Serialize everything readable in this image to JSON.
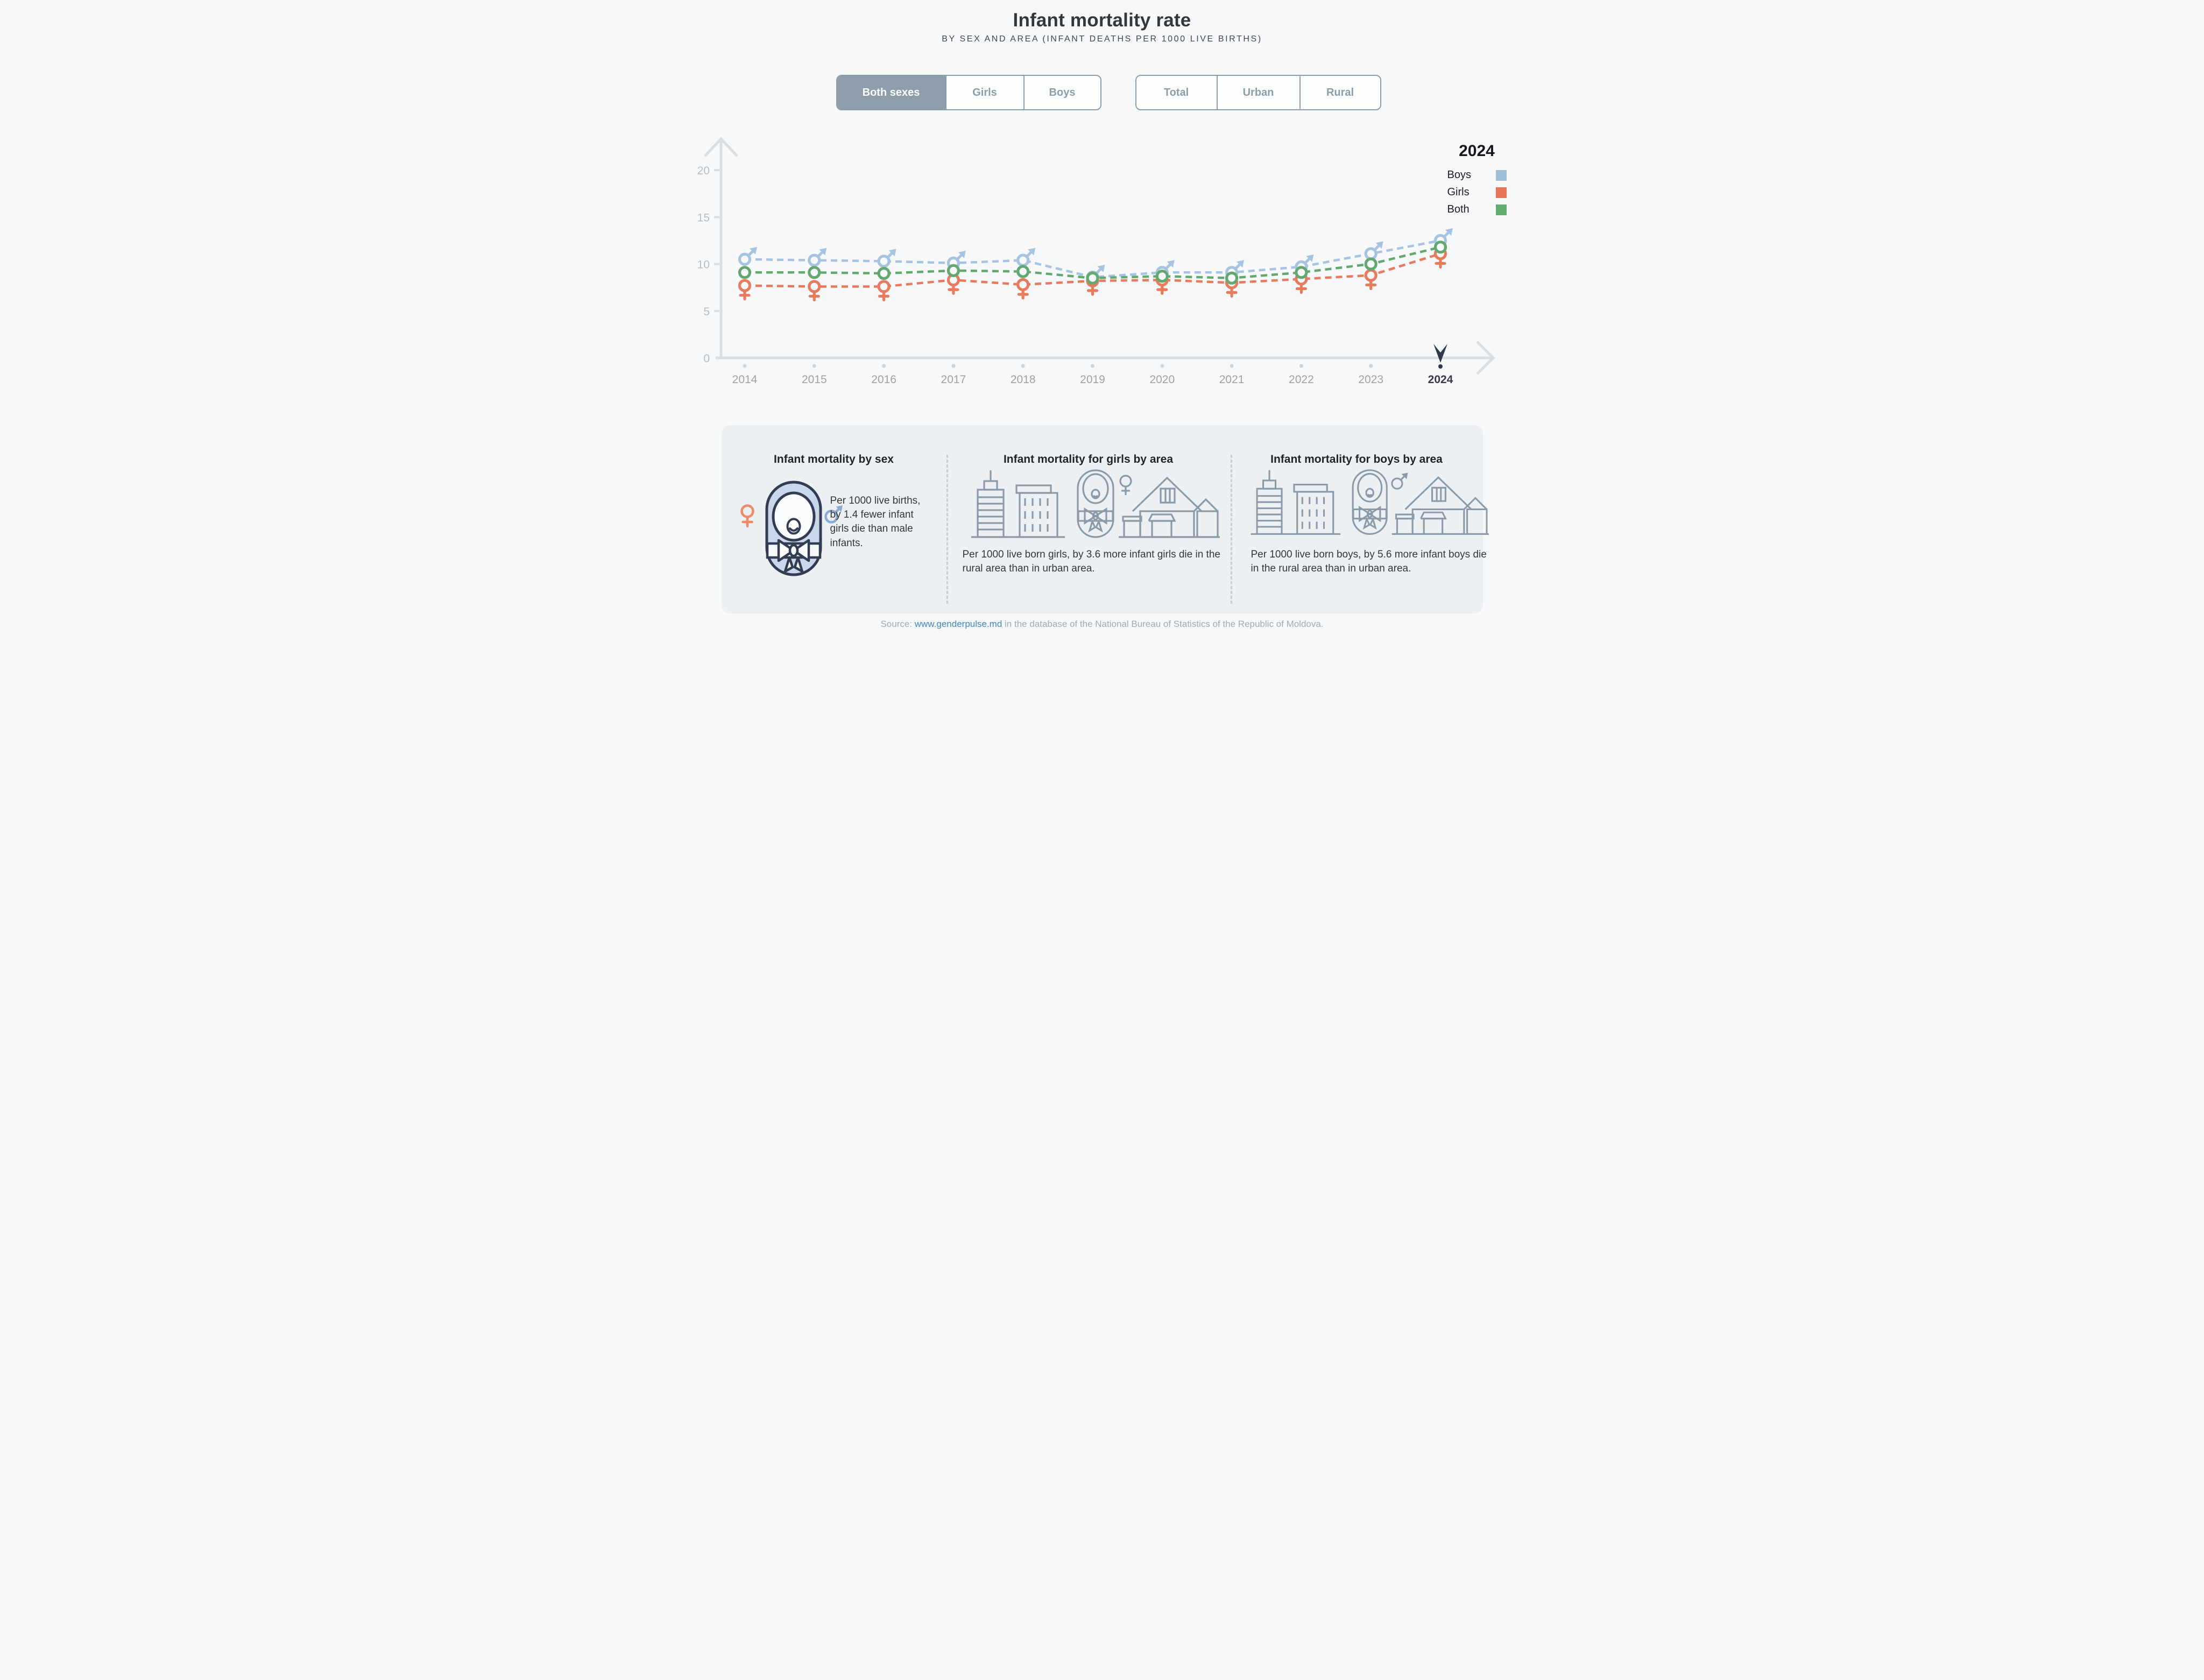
{
  "header": {
    "title": "Infant mortality rate",
    "subtitle": "BY SEX AND AREA (INFANT DEATHS PER 1000 LIVE BIRTHS)"
  },
  "filters": {
    "sex": {
      "options": [
        "Both sexes",
        "Girls",
        "Boys"
      ],
      "selected": "Both sexes"
    },
    "area": {
      "options": [
        "Total",
        "Urban",
        "Rural"
      ],
      "selected": null
    }
  },
  "legend": {
    "year": "2024",
    "items": [
      {
        "label": "Boys",
        "color": "#9fc0dd"
      },
      {
        "label": "Girls",
        "color": "#e8745a"
      },
      {
        "label": "Both",
        "color": "#64ab70"
      }
    ]
  },
  "chart_data": {
    "type": "line",
    "title": "Infant mortality rate",
    "xlabel": "",
    "ylabel": "infant deaths per 1000 live births",
    "x": [
      2014,
      2015,
      2016,
      2017,
      2018,
      2019,
      2020,
      2021,
      2022,
      2023,
      2024
    ],
    "series": [
      {
        "name": "Boys",
        "marker": "male",
        "color": "#a6c3e1",
        "values": [
          10.5,
          10.4,
          10.3,
          10.1,
          10.4,
          8.6,
          9.1,
          9.1,
          9.7,
          11.1,
          12.5
        ]
      },
      {
        "name": "Girls",
        "marker": "female",
        "color": "#e87a5e",
        "values": [
          7.7,
          7.6,
          7.6,
          8.3,
          7.8,
          8.2,
          8.3,
          8.0,
          8.4,
          8.8,
          11.1
        ]
      },
      {
        "name": "Both",
        "marker": "circle",
        "color": "#63a96f",
        "values": [
          9.1,
          9.1,
          9.0,
          9.3,
          9.2,
          8.5,
          8.7,
          8.5,
          9.1,
          10.0,
          11.8
        ]
      }
    ],
    "ylim": [
      0,
      20
    ],
    "yticks": [
      0,
      5,
      10,
      15,
      20
    ],
    "grid": false,
    "legend_position": "top-right",
    "highlight_x": 2024,
    "highlight_color": "#2e3850",
    "line_style": "dashed"
  },
  "cards": [
    {
      "title": "Infant mortality by sex",
      "text": "Per 1000 live births, by 1.4 fewer infant girls die than male infants.",
      "icons": [
        "female-icon",
        "swaddled-baby-icon",
        "male-icon"
      ]
    },
    {
      "title": "Infant mortality for girls by area",
      "text": "Per 1000 live born girls, by 3.6 more infant girls die in the rural area than in urban area.",
      "icons": [
        "city-buildings-icon",
        "swaddled-baby-icon",
        "female-icon",
        "rural-house-icon"
      ]
    },
    {
      "title": "Infant mortality for boys by area",
      "text": "Per 1000 live born boys, by 5.6 more infant boys die in the rural area than in urban area.",
      "icons": [
        "city-buildings-icon",
        "swaddled-baby-icon",
        "male-icon",
        "rural-house-icon"
      ]
    }
  ],
  "source": {
    "prefix": "Source: ",
    "link_text": "www.genderpulse.md",
    "suffix": " in the database of the National Bureau of Statistics of the Republic of Moldova."
  },
  "colors": {
    "accent_button": "#8d9dab",
    "axis": "#d9dee3",
    "panel_bg": "#edf0f3",
    "link": "#3f87c5",
    "highlight": "#2e3850"
  }
}
